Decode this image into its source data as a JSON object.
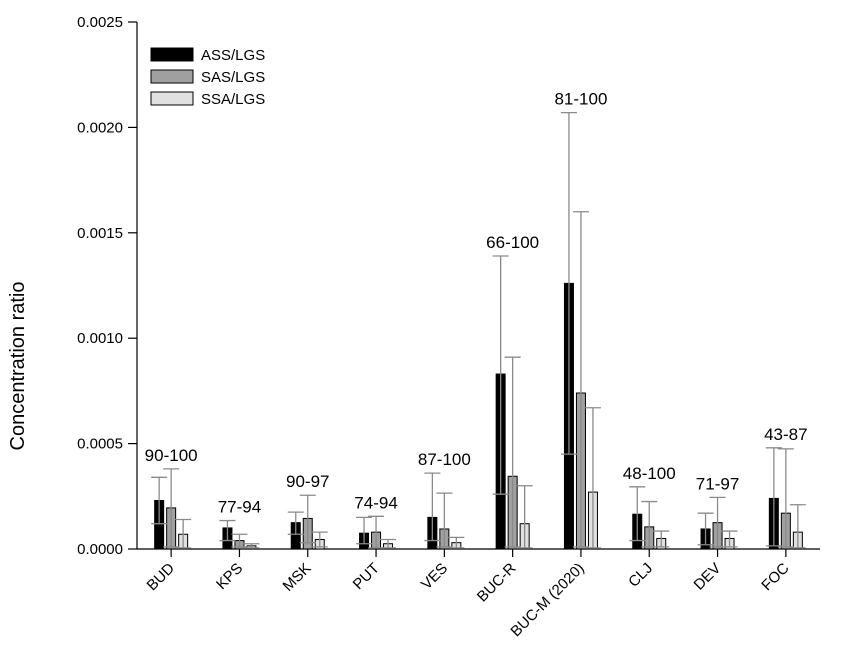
{
  "chart_data": {
    "type": "bar",
    "ylabel": "Concentration ratio",
    "ylim": [
      0,
      0.0025
    ],
    "yticks": [
      "0.0000",
      "0.0005",
      "0.0010",
      "0.0015",
      "0.0020",
      "0.0025"
    ],
    "categories": [
      "BUD",
      "KPS",
      "MSK",
      "PUT",
      "VES",
      "BUC-R",
      "BUC-M (2020)",
      "CLJ",
      "DEV",
      "FOC"
    ],
    "annotations": [
      "90-100",
      "77-94",
      "90-97",
      "74-94",
      "87-100",
      "66-100",
      "81-100",
      "48-100",
      "71-97",
      "43-87"
    ],
    "legend_position": "top-left",
    "series": [
      {
        "name": "ASS/LGS",
        "color": "#000000",
        "values": [
          0.00023,
          0.0001,
          0.000125,
          7.5e-05,
          0.00015,
          0.00083,
          0.00126,
          0.000165,
          9.5e-05,
          0.00024
        ],
        "err_upper": [
          0.00034,
          0.000135,
          0.000175,
          0.00015,
          0.00036,
          0.00139,
          0.00207,
          0.000295,
          0.00017,
          0.00048
        ],
        "err_lower": [
          0.00012,
          4e-05,
          7e-05,
          2.5e-05,
          4e-05,
          0.00026,
          0.00045,
          4e-05,
          2e-05,
          1.5e-05
        ]
      },
      {
        "name": "SAS/LGS",
        "color": "#a0a0a0",
        "values": [
          0.000195,
          4e-05,
          0.000145,
          8e-05,
          9.5e-05,
          0.000345,
          0.00074,
          0.000105,
          0.000125,
          0.00017
        ],
        "err_upper": [
          0.00038,
          7e-05,
          0.000255,
          0.000155,
          0.000265,
          0.00091,
          0.0016,
          0.000225,
          0.000245,
          0.000475
        ],
        "err_lower": [
          1e-05,
          1e-05,
          3e-05,
          5e-06,
          1e-05,
          1e-05,
          1e-05,
          1e-05,
          1e-05,
          1e-05
        ]
      },
      {
        "name": "SSA/LGS",
        "color": "#e0e0e0",
        "values": [
          7e-05,
          1.5e-05,
          4.5e-05,
          2.5e-05,
          3e-05,
          0.00012,
          0.00027,
          5e-05,
          5e-05,
          8e-05
        ],
        "err_upper": [
          0.00014,
          2.5e-05,
          8e-05,
          4.5e-05,
          5.5e-05,
          0.0003,
          0.00067,
          8.5e-05,
          8.5e-05,
          0.00021
        ],
        "err_lower": [
          5e-06,
          5e-06,
          1e-05,
          5e-06,
          5e-06,
          5e-06,
          5e-06,
          1e-05,
          1e-05,
          5e-06
        ]
      }
    ]
  }
}
